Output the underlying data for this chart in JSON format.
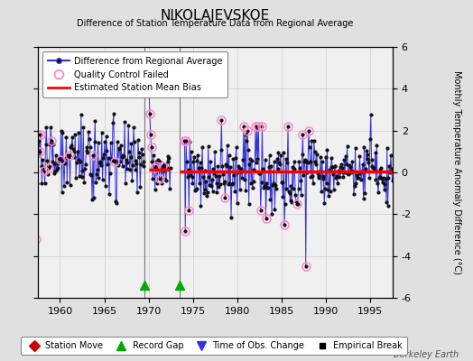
{
  "title": "NIKOLAJEVSKOE",
  "subtitle": "Difference of Station Temperature Data from Regional Average",
  "ylabel_right": "Monthly Temperature Anomaly Difference (°C)",
  "watermark": "Berkeley Earth",
  "xlim": [
    1957.5,
    1997.5
  ],
  "ylim": [
    -6,
    6
  ],
  "yticks": [
    -6,
    -4,
    -2,
    0,
    2,
    4,
    6
  ],
  "xticks": [
    1960,
    1965,
    1970,
    1975,
    1980,
    1985,
    1990,
    1995
  ],
  "bg_color": "#e0e0e0",
  "plot_bg_color": "#f0f0f0",
  "line_color": "#3333dd",
  "dot_color": "#111111",
  "qc_edge_color": "#ff88cc",
  "bias_color": "#ff0000",
  "gap_line_color": "#777777",
  "gap1_x": 1969.5,
  "gap2_x": 1973.5,
  "title_fontsize": 11,
  "subtitle_fontsize": 7,
  "tick_fontsize": 8,
  "ylabel_fontsize": 7,
  "legend_fontsize": 7
}
